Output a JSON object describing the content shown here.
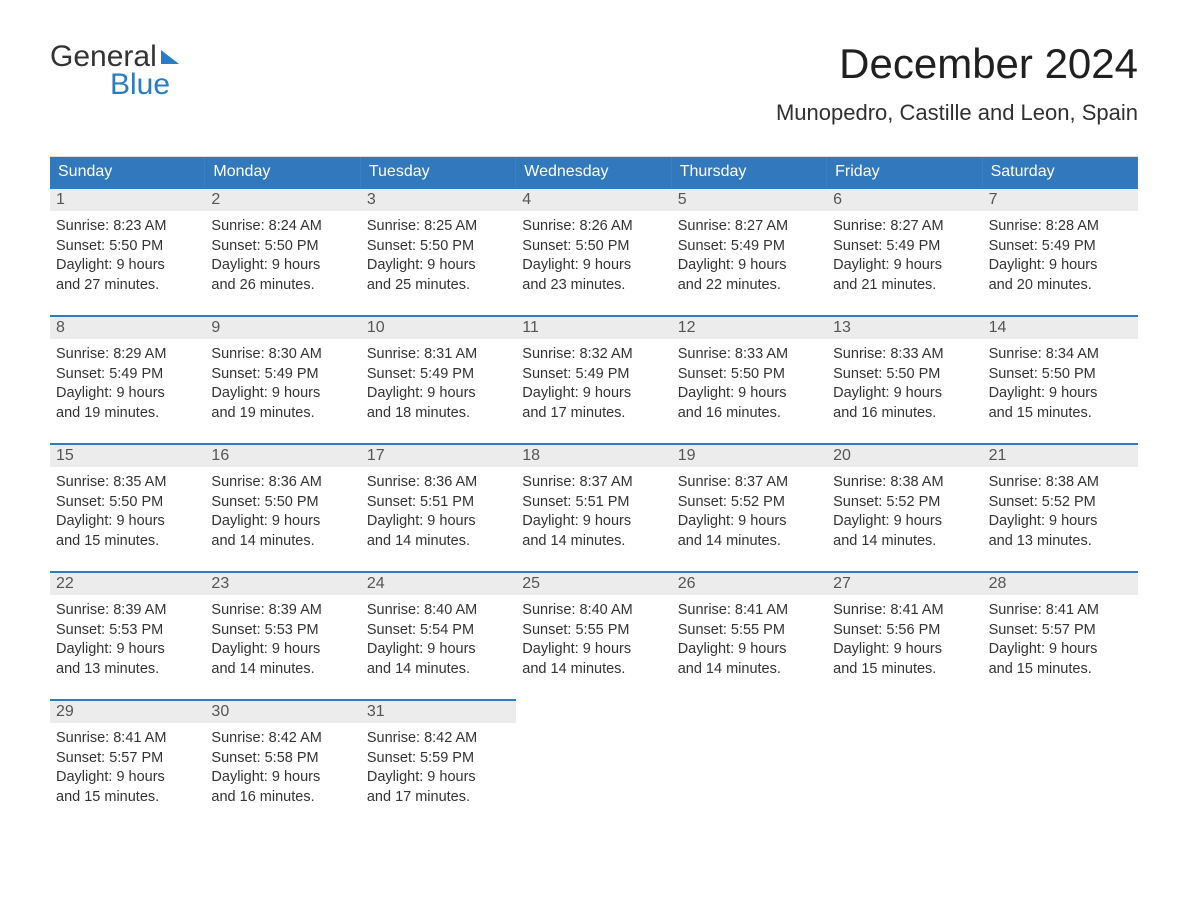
{
  "logo": {
    "word1": "General",
    "word2": "Blue",
    "color_primary": "#2a7dc4",
    "color_text": "#333333"
  },
  "title": {
    "month": "December 2024",
    "location": "Munopedro, Castille and Leon, Spain",
    "month_fontsize": 42,
    "location_fontsize": 22
  },
  "header_bg_color": "#3178bd",
  "header_text_color": "#ffffff",
  "day_number_bg": "#ececec",
  "day_number_border": "#2a7dc4",
  "cell_text_color": "#333333",
  "cell_fontsize": 14.5,
  "day_headers": [
    "Sunday",
    "Monday",
    "Tuesday",
    "Wednesday",
    "Thursday",
    "Friday",
    "Saturday"
  ],
  "weeks": [
    [
      {
        "num": "1",
        "sunrise": "Sunrise: 8:23 AM",
        "sunset": "Sunset: 5:50 PM",
        "daylight1": "Daylight: 9 hours",
        "daylight2": "and 27 minutes."
      },
      {
        "num": "2",
        "sunrise": "Sunrise: 8:24 AM",
        "sunset": "Sunset: 5:50 PM",
        "daylight1": "Daylight: 9 hours",
        "daylight2": "and 26 minutes."
      },
      {
        "num": "3",
        "sunrise": "Sunrise: 8:25 AM",
        "sunset": "Sunset: 5:50 PM",
        "daylight1": "Daylight: 9 hours",
        "daylight2": "and 25 minutes."
      },
      {
        "num": "4",
        "sunrise": "Sunrise: 8:26 AM",
        "sunset": "Sunset: 5:50 PM",
        "daylight1": "Daylight: 9 hours",
        "daylight2": "and 23 minutes."
      },
      {
        "num": "5",
        "sunrise": "Sunrise: 8:27 AM",
        "sunset": "Sunset: 5:49 PM",
        "daylight1": "Daylight: 9 hours",
        "daylight2": "and 22 minutes."
      },
      {
        "num": "6",
        "sunrise": "Sunrise: 8:27 AM",
        "sunset": "Sunset: 5:49 PM",
        "daylight1": "Daylight: 9 hours",
        "daylight2": "and 21 minutes."
      },
      {
        "num": "7",
        "sunrise": "Sunrise: 8:28 AM",
        "sunset": "Sunset: 5:49 PM",
        "daylight1": "Daylight: 9 hours",
        "daylight2": "and 20 minutes."
      }
    ],
    [
      {
        "num": "8",
        "sunrise": "Sunrise: 8:29 AM",
        "sunset": "Sunset: 5:49 PM",
        "daylight1": "Daylight: 9 hours",
        "daylight2": "and 19 minutes."
      },
      {
        "num": "9",
        "sunrise": "Sunrise: 8:30 AM",
        "sunset": "Sunset: 5:49 PM",
        "daylight1": "Daylight: 9 hours",
        "daylight2": "and 19 minutes."
      },
      {
        "num": "10",
        "sunrise": "Sunrise: 8:31 AM",
        "sunset": "Sunset: 5:49 PM",
        "daylight1": "Daylight: 9 hours",
        "daylight2": "and 18 minutes."
      },
      {
        "num": "11",
        "sunrise": "Sunrise: 8:32 AM",
        "sunset": "Sunset: 5:49 PM",
        "daylight1": "Daylight: 9 hours",
        "daylight2": "and 17 minutes."
      },
      {
        "num": "12",
        "sunrise": "Sunrise: 8:33 AM",
        "sunset": "Sunset: 5:50 PM",
        "daylight1": "Daylight: 9 hours",
        "daylight2": "and 16 minutes."
      },
      {
        "num": "13",
        "sunrise": "Sunrise: 8:33 AM",
        "sunset": "Sunset: 5:50 PM",
        "daylight1": "Daylight: 9 hours",
        "daylight2": "and 16 minutes."
      },
      {
        "num": "14",
        "sunrise": "Sunrise: 8:34 AM",
        "sunset": "Sunset: 5:50 PM",
        "daylight1": "Daylight: 9 hours",
        "daylight2": "and 15 minutes."
      }
    ],
    [
      {
        "num": "15",
        "sunrise": "Sunrise: 8:35 AM",
        "sunset": "Sunset: 5:50 PM",
        "daylight1": "Daylight: 9 hours",
        "daylight2": "and 15 minutes."
      },
      {
        "num": "16",
        "sunrise": "Sunrise: 8:36 AM",
        "sunset": "Sunset: 5:50 PM",
        "daylight1": "Daylight: 9 hours",
        "daylight2": "and 14 minutes."
      },
      {
        "num": "17",
        "sunrise": "Sunrise: 8:36 AM",
        "sunset": "Sunset: 5:51 PM",
        "daylight1": "Daylight: 9 hours",
        "daylight2": "and 14 minutes."
      },
      {
        "num": "18",
        "sunrise": "Sunrise: 8:37 AM",
        "sunset": "Sunset: 5:51 PM",
        "daylight1": "Daylight: 9 hours",
        "daylight2": "and 14 minutes."
      },
      {
        "num": "19",
        "sunrise": "Sunrise: 8:37 AM",
        "sunset": "Sunset: 5:52 PM",
        "daylight1": "Daylight: 9 hours",
        "daylight2": "and 14 minutes."
      },
      {
        "num": "20",
        "sunrise": "Sunrise: 8:38 AM",
        "sunset": "Sunset: 5:52 PM",
        "daylight1": "Daylight: 9 hours",
        "daylight2": "and 14 minutes."
      },
      {
        "num": "21",
        "sunrise": "Sunrise: 8:38 AM",
        "sunset": "Sunset: 5:52 PM",
        "daylight1": "Daylight: 9 hours",
        "daylight2": "and 13 minutes."
      }
    ],
    [
      {
        "num": "22",
        "sunrise": "Sunrise: 8:39 AM",
        "sunset": "Sunset: 5:53 PM",
        "daylight1": "Daylight: 9 hours",
        "daylight2": "and 13 minutes."
      },
      {
        "num": "23",
        "sunrise": "Sunrise: 8:39 AM",
        "sunset": "Sunset: 5:53 PM",
        "daylight1": "Daylight: 9 hours",
        "daylight2": "and 14 minutes."
      },
      {
        "num": "24",
        "sunrise": "Sunrise: 8:40 AM",
        "sunset": "Sunset: 5:54 PM",
        "daylight1": "Daylight: 9 hours",
        "daylight2": "and 14 minutes."
      },
      {
        "num": "25",
        "sunrise": "Sunrise: 8:40 AM",
        "sunset": "Sunset: 5:55 PM",
        "daylight1": "Daylight: 9 hours",
        "daylight2": "and 14 minutes."
      },
      {
        "num": "26",
        "sunrise": "Sunrise: 8:41 AM",
        "sunset": "Sunset: 5:55 PM",
        "daylight1": "Daylight: 9 hours",
        "daylight2": "and 14 minutes."
      },
      {
        "num": "27",
        "sunrise": "Sunrise: 8:41 AM",
        "sunset": "Sunset: 5:56 PM",
        "daylight1": "Daylight: 9 hours",
        "daylight2": "and 15 minutes."
      },
      {
        "num": "28",
        "sunrise": "Sunrise: 8:41 AM",
        "sunset": "Sunset: 5:57 PM",
        "daylight1": "Daylight: 9 hours",
        "daylight2": "and 15 minutes."
      }
    ],
    [
      {
        "num": "29",
        "sunrise": "Sunrise: 8:41 AM",
        "sunset": "Sunset: 5:57 PM",
        "daylight1": "Daylight: 9 hours",
        "daylight2": "and 15 minutes."
      },
      {
        "num": "30",
        "sunrise": "Sunrise: 8:42 AM",
        "sunset": "Sunset: 5:58 PM",
        "daylight1": "Daylight: 9 hours",
        "daylight2": "and 16 minutes."
      },
      {
        "num": "31",
        "sunrise": "Sunrise: 8:42 AM",
        "sunset": "Sunset: 5:59 PM",
        "daylight1": "Daylight: 9 hours",
        "daylight2": "and 17 minutes."
      },
      null,
      null,
      null,
      null
    ]
  ]
}
